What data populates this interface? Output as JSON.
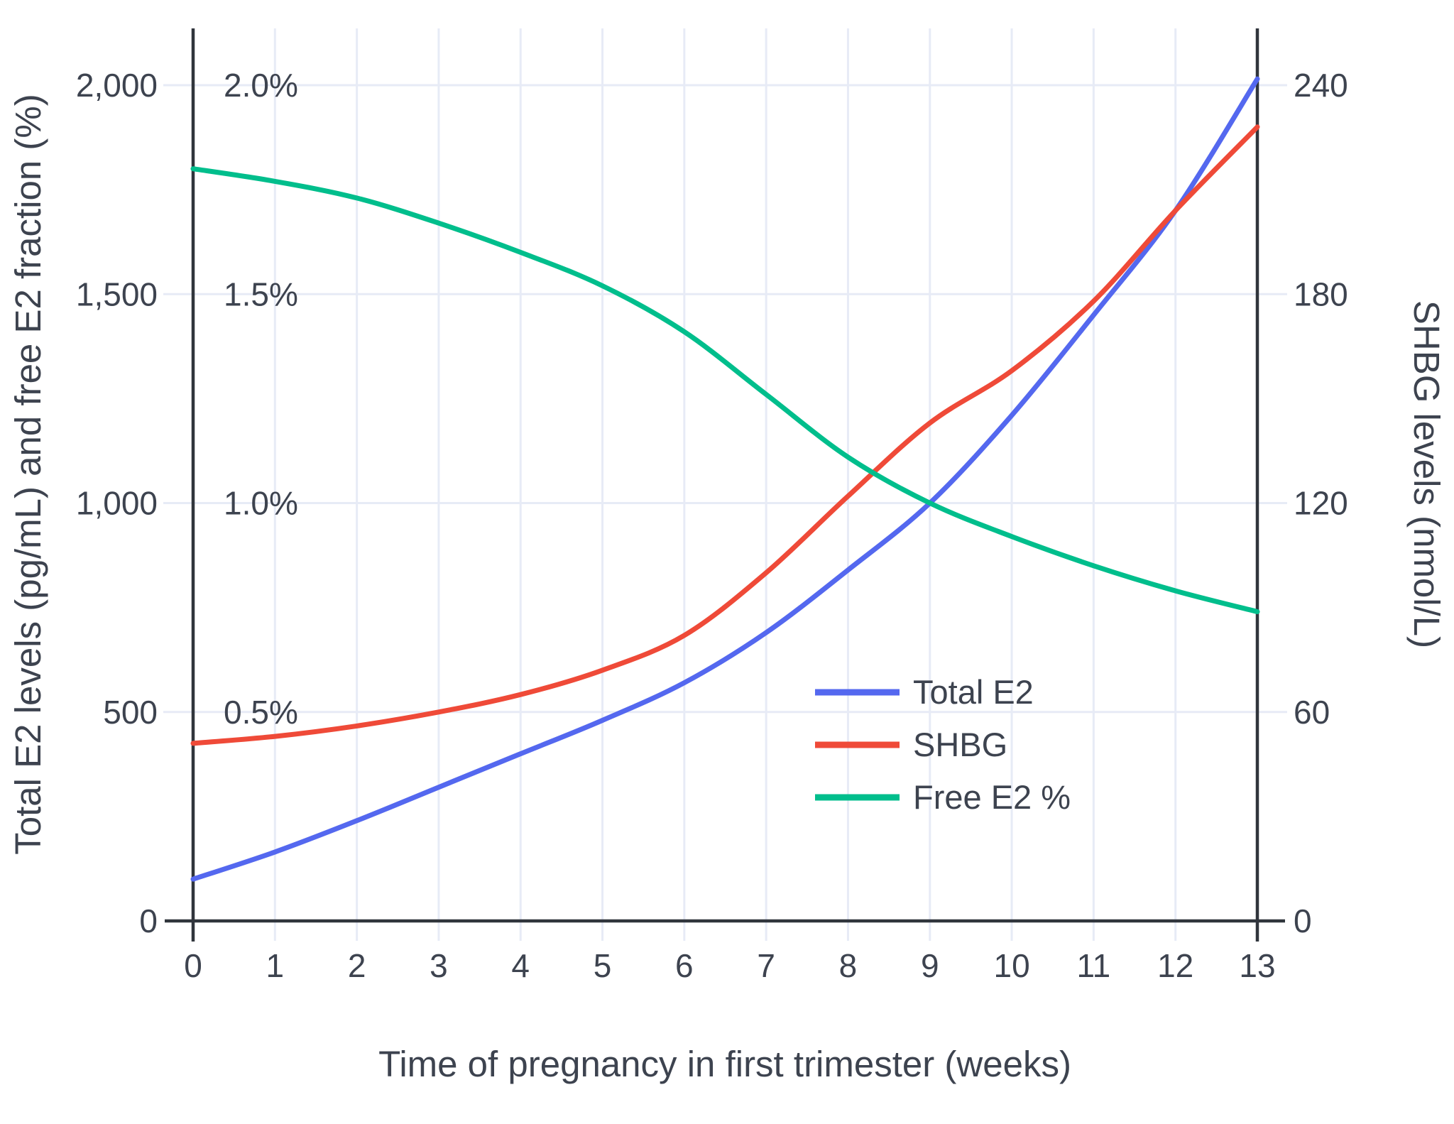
{
  "chart_data": {
    "type": "line",
    "title": "",
    "xlabel": "Time of pregnancy in first trimester (weeks)",
    "ylabel_left": "Total E2 levels (pg/mL) and free E2 fraction (%)",
    "ylabel_right": "SHBG levels (nmol/L)",
    "x": [
      0,
      1,
      2,
      3,
      4,
      5,
      6,
      7,
      8,
      9,
      10,
      11,
      12,
      13
    ],
    "x_tick_labels": [
      "0",
      "1",
      "2",
      "3",
      "4",
      "5",
      "6",
      "7",
      "8",
      "9",
      "10",
      "11",
      "12",
      "13"
    ],
    "x_range": [
      0,
      13
    ],
    "y_left_range": [
      0,
      2000
    ],
    "y_right_range": [
      0,
      240
    ],
    "grid": true,
    "legend_position": "inside-lower-right",
    "y_left_ticks": [
      {
        "value": 0,
        "label": "0"
      },
      {
        "value": 500,
        "label": "500"
      },
      {
        "value": 1000,
        "label": "1,000"
      },
      {
        "value": 1500,
        "label": "1,500"
      },
      {
        "value": 2000,
        "label": "2,000"
      }
    ],
    "y_left_percent_labels": [
      {
        "value": 500,
        "label": "0.5%"
      },
      {
        "value": 1000,
        "label": "1.0%"
      },
      {
        "value": 1500,
        "label": "1.5%"
      },
      {
        "value": 2000,
        "label": "2.0%"
      }
    ],
    "y_right_ticks": [
      {
        "value": 0,
        "label": "0"
      },
      {
        "value": 60,
        "label": "60"
      },
      {
        "value": 120,
        "label": "120"
      },
      {
        "value": 180,
        "label": "180"
      },
      {
        "value": 240,
        "label": "240"
      }
    ],
    "series": [
      {
        "name": "Total E2",
        "color": "#5468EF",
        "axis": "left",
        "unit": "pg/mL",
        "values": [
          100,
          165,
          240,
          320,
          400,
          480,
          570,
          690,
          840,
          1000,
          1210,
          1450,
          1700,
          2015
        ]
      },
      {
        "name": "SHBG",
        "color": "#EF4A38",
        "axis": "right",
        "unit": "nmol/L",
        "values": [
          51,
          53,
          56,
          60,
          65,
          72,
          82,
          100,
          122,
          143,
          158,
          178,
          204,
          228
        ]
      },
      {
        "name": "Free E2 %",
        "color": "#00BE8C",
        "axis": "left-percent",
        "unit": "%",
        "values": [
          1.8,
          1.77,
          1.73,
          1.67,
          1.6,
          1.52,
          1.41,
          1.26,
          1.11,
          1.0,
          0.92,
          0.85,
          0.79,
          0.74
        ]
      }
    ],
    "style_colors": {
      "background": "#FFFFFF",
      "gridline": "#E7EBF6",
      "axis_line": "#30353C",
      "text": "#3D434F"
    }
  }
}
